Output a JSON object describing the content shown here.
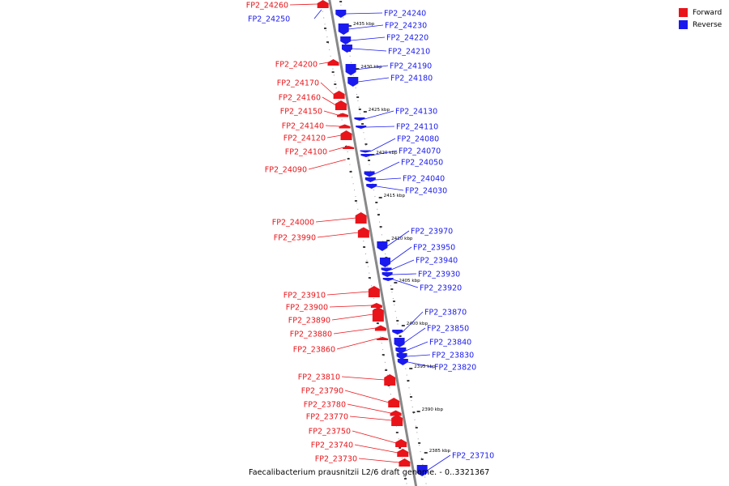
{
  "caption": "Faecalibacterium prausnitzii L2/6 draft genome. - 0..3321367",
  "legend": {
    "forward_label": "Forward",
    "reverse_label": "Reverse",
    "forward_color": "#e8141a",
    "reverse_color": "#1a1aee"
  },
  "colors": {
    "forward": "#e8141a",
    "reverse": "#1a1aee",
    "backbone": "#888888",
    "tick": "#000000"
  },
  "scale_labels": [
    "2435 kbp",
    "2430 kbp",
    "2425 kbp",
    "2420 kbp",
    "2415 kbp",
    "2410 kbp",
    "2405 kbp",
    "2400 kbp",
    "2395 kbp",
    "2390 kbp",
    "2385 kbp"
  ],
  "forward_genes": [
    "FP2_24260",
    "FP2_24200",
    "FP2_24170",
    "FP2_24160",
    "FP2_24150",
    "FP2_24140",
    "FP2_24120",
    "FP2_24100",
    "FP2_24090",
    "FP2_24000",
    "FP2_23990",
    "FP2_23910",
    "FP2_23900",
    "FP2_23890",
    "FP2_23880",
    "FP2_23860",
    "FP2_23810",
    "FP2_23790",
    "FP2_23780",
    "FP2_23770",
    "FP2_23750",
    "FP2_23740",
    "FP2_23730"
  ],
  "reverse_genes": [
    "FP2_24250",
    "FP2_24240",
    "FP2_24230",
    "FP2_24220",
    "FP2_24210",
    "FP2_24190",
    "FP2_24180",
    "FP2_24130",
    "FP2_24110",
    "FP2_24080",
    "FP2_24070",
    "FP2_24050",
    "FP2_24040",
    "FP2_24030",
    "FP2_23970",
    "FP2_23950",
    "FP2_23940",
    "FP2_23930",
    "FP2_23920",
    "FP2_23870",
    "FP2_23850",
    "FP2_23840",
    "FP2_23830",
    "FP2_23820",
    "FP2_23710"
  ]
}
